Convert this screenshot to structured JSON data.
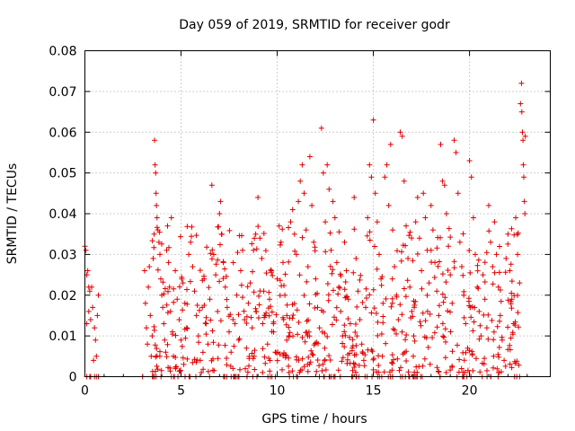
{
  "chart_data": {
    "type": "scatter",
    "title": "Day 059 of 2019, SRMTID for receiver godr",
    "xlabel": "GPS time / hours",
    "ylabel": "SRMTID / TECUs",
    "xlim": [
      0,
      24.2
    ],
    "ylim": [
      0,
      0.08
    ],
    "xticks": [
      0,
      5,
      10,
      15,
      20
    ],
    "xtick_labels": [
      "0",
      "5",
      "10",
      "15",
      "20"
    ],
    "yticks": [
      0,
      0.01,
      0.02,
      0.03,
      0.04,
      0.05,
      0.06,
      0.07,
      0.08
    ],
    "ytick_labels": [
      "0",
      "0.01",
      "0.02",
      "0.03",
      "0.04",
      "0.05",
      "0.06",
      "0.07",
      "0.08"
    ],
    "grid": true,
    "marker": "+",
    "color": "#e00000",
    "series": [
      {
        "name": "SRMTID",
        "points": [
          [
            0.0,
            0.032
          ],
          [
            0.05,
            0.031
          ],
          [
            0.1,
            0.025
          ],
          [
            0.15,
            0.026
          ],
          [
            0.2,
            0.022
          ],
          [
            0.25,
            0.021
          ],
          [
            0.3,
            0.014
          ],
          [
            0.1,
            0.013
          ],
          [
            0.2,
            0.016
          ],
          [
            0.35,
            0.022
          ],
          [
            0.4,
            0.017
          ],
          [
            0.5,
            0.012
          ],
          [
            0.55,
            0.009
          ],
          [
            0.6,
            0.005
          ],
          [
            0.65,
            0.015
          ],
          [
            0.7,
            0.02
          ],
          [
            0.45,
            0.004
          ],
          [
            0.25,
            0.0
          ],
          [
            0.1,
            0.0
          ],
          [
            0.3,
            0.0
          ],
          [
            0.5,
            0.0
          ],
          [
            0.6,
            0.0
          ],
          [
            0.7,
            0.0
          ],
          [
            3.0,
            0.0
          ],
          [
            3.1,
            0.026
          ],
          [
            3.15,
            0.018
          ],
          [
            3.2,
            0.012
          ],
          [
            3.25,
            0.008
          ],
          [
            3.3,
            0.022
          ],
          [
            3.35,
            0.027
          ],
          [
            3.4,
            0.015
          ],
          [
            3.45,
            0.005
          ],
          [
            3.5,
            0.01
          ],
          [
            3.55,
            0.029
          ],
          [
            3.6,
            0.035
          ],
          [
            3.62,
            0.058
          ],
          [
            3.65,
            0.052
          ],
          [
            3.68,
            0.05
          ],
          [
            3.7,
            0.045
          ],
          [
            3.72,
            0.042
          ],
          [
            3.75,
            0.039
          ],
          [
            3.8,
            0.036
          ],
          [
            3.85,
            0.033
          ],
          [
            3.9,
            0.03
          ],
          [
            3.95,
            0.024
          ],
          [
            4.0,
            0.02
          ],
          [
            4.05,
            0.017
          ],
          [
            4.1,
            0.013
          ],
          [
            4.15,
            0.009
          ],
          [
            4.2,
            0.006
          ],
          [
            4.25,
            0.031
          ],
          [
            4.3,
            0.037
          ],
          [
            4.35,
            0.028
          ],
          [
            4.4,
            0.022
          ],
          [
            4.45,
            0.016
          ],
          [
            4.5,
            0.039
          ],
          [
            4.55,
            0.011
          ],
          [
            4.6,
            0.005
          ],
          [
            4.65,
            0.0
          ],
          [
            4.7,
            0.026
          ],
          [
            4.8,
            0.019
          ],
          [
            4.9,
            0.014
          ],
          [
            5.0,
            0.009
          ],
          [
            5.1,
            0.023
          ],
          [
            5.2,
            0.018
          ],
          [
            5.3,
            0.012
          ],
          [
            5.4,
            0.03
          ],
          [
            5.5,
            0.033
          ],
          [
            5.6,
            0.027
          ],
          [
            5.7,
            0.021
          ],
          [
            5.8,
            0.015
          ],
          [
            5.9,
            0.01
          ],
          [
            6.0,
            0.004
          ],
          [
            6.1,
            0.017
          ],
          [
            6.2,
            0.024
          ],
          [
            6.3,
            0.013
          ],
          [
            6.4,
            0.008
          ],
          [
            6.5,
            0.019
          ],
          [
            6.6,
            0.047
          ],
          [
            6.7,
            0.03
          ],
          [
            6.8,
            0.025
          ],
          [
            6.9,
            0.016
          ],
          [
            7.0,
            0.04
          ],
          [
            7.05,
            0.043
          ],
          [
            7.1,
            0.035
          ],
          [
            7.2,
            0.028
          ],
          [
            7.3,
            0.022
          ],
          [
            7.4,
            0.017
          ],
          [
            7.5,
            0.011
          ],
          [
            7.6,
            0.006
          ],
          [
            7.7,
            0.002
          ],
          [
            7.8,
            0.013
          ],
          [
            7.9,
            0.02
          ],
          [
            8.0,
            0.009
          ],
          [
            8.1,
            0.026
          ],
          [
            8.2,
            0.031
          ],
          [
            8.3,
            0.014
          ],
          [
            8.4,
            0.007
          ],
          [
            8.5,
            0.018
          ],
          [
            8.6,
            0.023
          ],
          [
            8.7,
            0.012
          ],
          [
            8.8,
            0.005
          ],
          [
            8.9,
            0.016
          ],
          [
            9.0,
            0.044
          ],
          [
            9.1,
            0.034
          ],
          [
            9.2,
            0.029
          ],
          [
            9.3,
            0.021
          ],
          [
            9.4,
            0.015
          ],
          [
            9.5,
            0.008
          ],
          [
            9.6,
            0.019
          ],
          [
            9.7,
            0.026
          ],
          [
            9.8,
            0.013
          ],
          [
            9.9,
            0.006
          ],
          [
            10.0,
            0.024
          ],
          [
            10.1,
            0.037
          ],
          [
            10.2,
            0.033
          ],
          [
            10.3,
            0.028
          ],
          [
            10.4,
            0.02
          ],
          [
            10.5,
            0.015
          ],
          [
            10.6,
            0.01
          ],
          [
            10.7,
            0.038
          ],
          [
            10.8,
            0.041
          ],
          [
            10.9,
            0.035
          ],
          [
            11.0,
            0.03
          ],
          [
            11.1,
            0.043
          ],
          [
            11.2,
            0.048
          ],
          [
            11.3,
            0.052
          ],
          [
            11.4,
            0.045
          ],
          [
            11.5,
            0.036
          ],
          [
            11.6,
            0.027
          ],
          [
            11.7,
            0.054
          ],
          [
            11.8,
            0.042
          ],
          [
            11.9,
            0.033
          ],
          [
            12.0,
            0.024
          ],
          [
            12.1,
            0.017
          ],
          [
            12.2,
            0.012
          ],
          [
            12.3,
            0.061
          ],
          [
            12.4,
            0.05
          ],
          [
            12.5,
            0.038
          ],
          [
            12.6,
            0.052
          ],
          [
            12.7,
            0.046
          ],
          [
            12.8,
            0.031
          ],
          [
            12.9,
            0.043
          ],
          [
            13.0,
            0.039
          ],
          [
            13.1,
            0.028
          ],
          [
            13.2,
            0.022
          ],
          [
            13.3,
            0.016
          ],
          [
            13.4,
            0.01
          ],
          [
            13.5,
            0.033
          ],
          [
            13.6,
            0.026
          ],
          [
            13.7,
            0.019
          ],
          [
            13.8,
            0.013
          ],
          [
            13.9,
            0.007
          ],
          [
            14.0,
            0.044
          ],
          [
            14.1,
            0.029
          ],
          [
            14.2,
            0.021
          ],
          [
            14.3,
            0.014
          ],
          [
            14.4,
            0.008
          ],
          [
            14.5,
            0.004
          ],
          [
            14.6,
            0.017
          ],
          [
            14.7,
            0.039
          ],
          [
            14.8,
            0.052
          ],
          [
            14.9,
            0.049
          ],
          [
            15.0,
            0.063
          ],
          [
            15.1,
            0.045
          ],
          [
            15.2,
            0.038
          ],
          [
            15.3,
            0.03
          ],
          [
            15.4,
            0.024
          ],
          [
            15.5,
            0.018
          ],
          [
            15.6,
            0.049
          ],
          [
            15.7,
            0.052
          ],
          [
            15.8,
            0.042
          ],
          [
            15.9,
            0.057
          ],
          [
            16.0,
            0.036
          ],
          [
            16.1,
            0.027
          ],
          [
            16.2,
            0.02
          ],
          [
            16.3,
            0.014
          ],
          [
            16.4,
            0.06
          ],
          [
            16.5,
            0.059
          ],
          [
            16.6,
            0.048
          ],
          [
            16.7,
            0.037
          ],
          [
            16.8,
            0.029
          ],
          [
            16.9,
            0.022
          ],
          [
            17.0,
            0.016
          ],
          [
            17.1,
            0.01
          ],
          [
            17.2,
            0.038
          ],
          [
            17.3,
            0.044
          ],
          [
            17.4,
            0.034
          ],
          [
            17.5,
            0.026
          ],
          [
            17.6,
            0.045
          ],
          [
            17.7,
            0.039
          ],
          [
            17.8,
            0.031
          ],
          [
            17.9,
            0.023
          ],
          [
            18.0,
            0.042
          ],
          [
            18.1,
            0.036
          ],
          [
            18.2,
            0.028
          ],
          [
            18.3,
            0.021
          ],
          [
            18.4,
            0.015
          ],
          [
            18.5,
            0.057
          ],
          [
            18.6,
            0.048
          ],
          [
            18.7,
            0.047
          ],
          [
            18.8,
            0.04
          ],
          [
            18.9,
            0.032
          ],
          [
            19.0,
            0.025
          ],
          [
            19.1,
            0.018
          ],
          [
            19.2,
            0.058
          ],
          [
            19.3,
            0.055
          ],
          [
            19.4,
            0.045
          ],
          [
            19.5,
            0.033
          ],
          [
            19.6,
            0.027
          ],
          [
            19.7,
            0.02
          ],
          [
            19.8,
            0.013
          ],
          [
            19.9,
            0.007
          ],
          [
            20.0,
            0.053
          ],
          [
            20.1,
            0.049
          ],
          [
            20.2,
            0.039
          ],
          [
            20.3,
            0.03
          ],
          [
            20.4,
            0.022
          ],
          [
            20.5,
            0.016
          ],
          [
            20.6,
            0.01
          ],
          [
            20.7,
            0.025
          ],
          [
            20.8,
            0.019
          ],
          [
            20.9,
            0.012
          ],
          [
            21.0,
            0.042
          ],
          [
            21.1,
            0.033
          ],
          [
            21.2,
            0.027
          ],
          [
            21.3,
            0.038
          ],
          [
            21.4,
            0.03
          ],
          [
            21.5,
            0.022
          ],
          [
            21.6,
            0.015
          ],
          [
            21.7,
            0.009
          ],
          [
            21.8,
            0.004
          ],
          [
            21.9,
            0.029
          ],
          [
            22.0,
            0.035
          ],
          [
            22.1,
            0.026
          ],
          [
            22.2,
            0.019
          ],
          [
            22.3,
            0.013
          ],
          [
            22.4,
            0.039
          ],
          [
            22.5,
            0.03
          ],
          [
            22.6,
            0.023
          ],
          [
            22.65,
            0.067
          ],
          [
            22.7,
            0.072
          ],
          [
            22.72,
            0.065
          ],
          [
            22.75,
            0.06
          ],
          [
            22.78,
            0.058
          ],
          [
            22.8,
            0.052
          ],
          [
            22.82,
            0.049
          ],
          [
            22.85,
            0.043
          ],
          [
            22.88,
            0.04
          ],
          [
            22.9,
            0.059
          ],
          [
            22.6,
            0.0
          ]
        ]
      }
    ],
    "cloud_seed": 59,
    "cloud_density": [
      [
        3.5,
        24
      ],
      [
        4.0,
        28
      ],
      [
        5.0,
        30
      ],
      [
        6.0,
        30
      ],
      [
        7.0,
        30
      ],
      [
        8.0,
        34
      ],
      [
        9.0,
        36
      ],
      [
        10.0,
        40
      ],
      [
        11.0,
        40
      ],
      [
        12.0,
        38
      ],
      [
        13.0,
        38
      ],
      [
        14.0,
        38
      ],
      [
        15.0,
        36
      ],
      [
        16.0,
        36
      ],
      [
        17.0,
        34
      ],
      [
        18.0,
        34
      ],
      [
        19.0,
        32
      ],
      [
        20.0,
        32
      ],
      [
        21.0,
        30
      ],
      [
        22.0,
        30
      ],
      [
        22.6,
        20
      ]
    ]
  }
}
